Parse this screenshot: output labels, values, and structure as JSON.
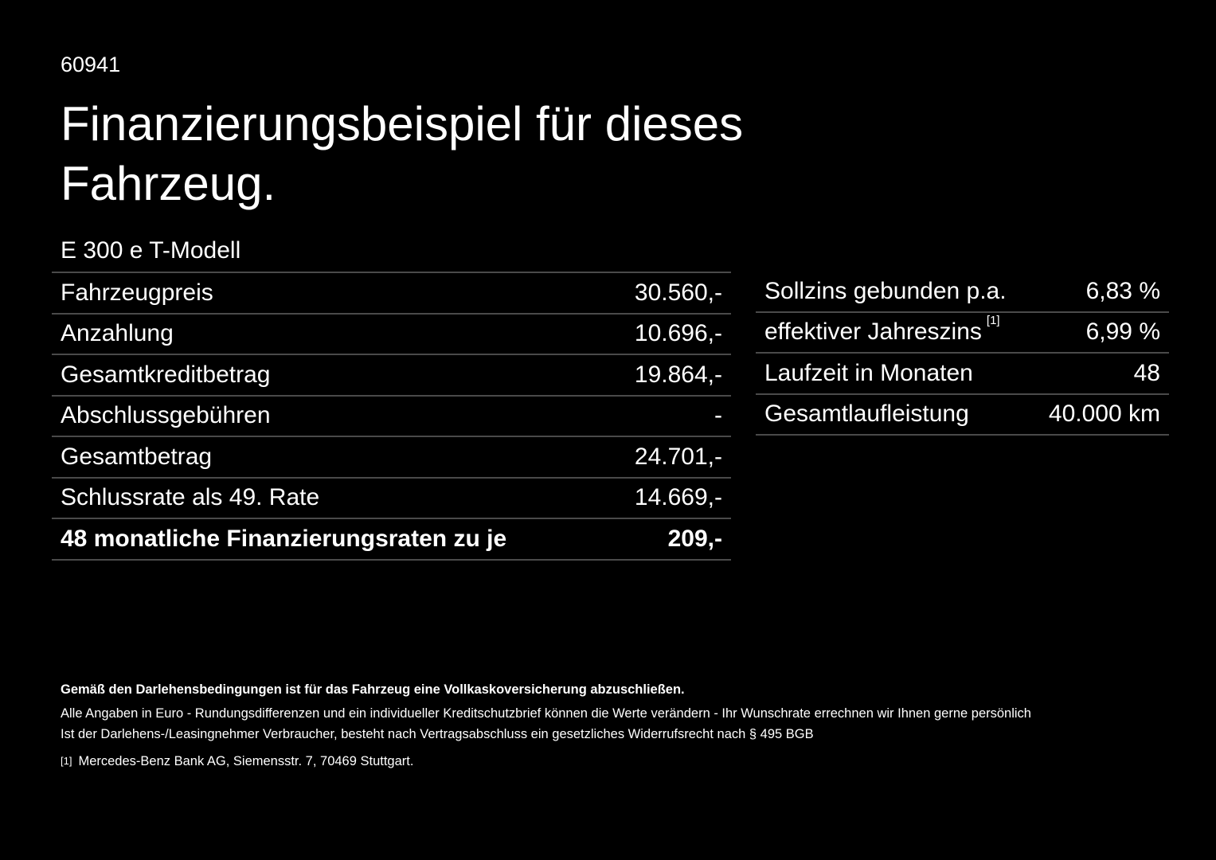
{
  "code": "60941",
  "title": "Finanzierungsbeispiel für dieses Fahrzeug.",
  "model": "E 300 e T-Modell",
  "left_table": [
    {
      "label": "Fahrzeugpreis",
      "value": "30.560,-"
    },
    {
      "label": "Anzahlung",
      "value": "10.696,-"
    },
    {
      "label": "Gesamtkreditbetrag",
      "value": "19.864,-"
    },
    {
      "label": "Abschlussgebühren",
      "value": "-"
    },
    {
      "label": "Gesamtbetrag",
      "value": "24.701,-"
    },
    {
      "label": "Schlussrate als 49. Rate",
      "value": "14.669,-"
    },
    {
      "label": "48 monatliche Finanzierungsraten zu je",
      "value": "209,-"
    }
  ],
  "right_table": [
    {
      "label": "Sollzins gebunden p.a.",
      "note": "",
      "value": "6,83 %"
    },
    {
      "label": "effektiver Jahreszins",
      "note": "[1]",
      "value": "6,99 %"
    },
    {
      "label": "Laufzeit in Monaten",
      "note": "",
      "value": "48"
    },
    {
      "label": "Gesamtlaufleistung",
      "note": "",
      "value": "40.000 km"
    }
  ],
  "notes": {
    "bold": "Gemäß den Darlehensbedingungen ist für das Fahrzeug eine Vollkaskoversicherung abzuschließen.",
    "line1": "Alle Angaben in Euro - Rundungsdifferenzen und ein individueller Kreditschutzbrief können die Werte verändern - Ihr Wunschrate errechnen wir Ihnen gerne persönlich",
    "line2": "Ist der Darlehens-/Leasingnehmer Verbraucher, besteht nach Vertragsabschluss ein gesetzliches Widerrufsrecht nach § 495 BGB",
    "footnote_marker": "[1]",
    "footnote": "Mercedes-Benz Bank AG, Siemensstr. 7, 70469 Stuttgart."
  }
}
